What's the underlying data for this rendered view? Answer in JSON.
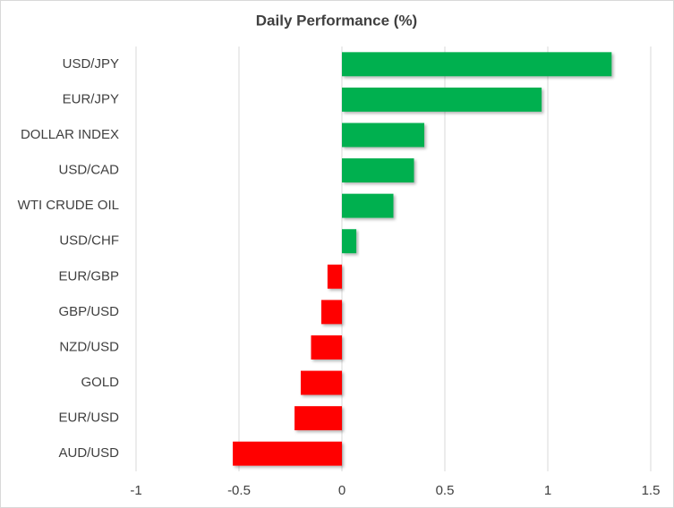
{
  "chart_data": {
    "type": "barh",
    "title": "Daily Performance  (%)",
    "categories": [
      "USD/JPY",
      "EUR/JPY",
      "DOLLAR INDEX",
      "USD/CAD",
      "WTI CRUDE OIL",
      "USD/CHF",
      "EUR/GBP",
      "GBP/USD",
      "NZD/USD",
      "GOLD",
      "EUR/USD",
      "AUD/USD"
    ],
    "values": [
      1.31,
      0.97,
      0.4,
      0.35,
      0.25,
      0.07,
      -0.07,
      -0.1,
      -0.15,
      -0.2,
      -0.23,
      -0.53
    ],
    "color_positive": "#00b050",
    "color_negative": "#ff0000",
    "xlim": [
      -1,
      1.5
    ],
    "xticks": [
      -1,
      -0.5,
      0,
      0.5,
      1,
      1.5
    ],
    "grid": true
  }
}
